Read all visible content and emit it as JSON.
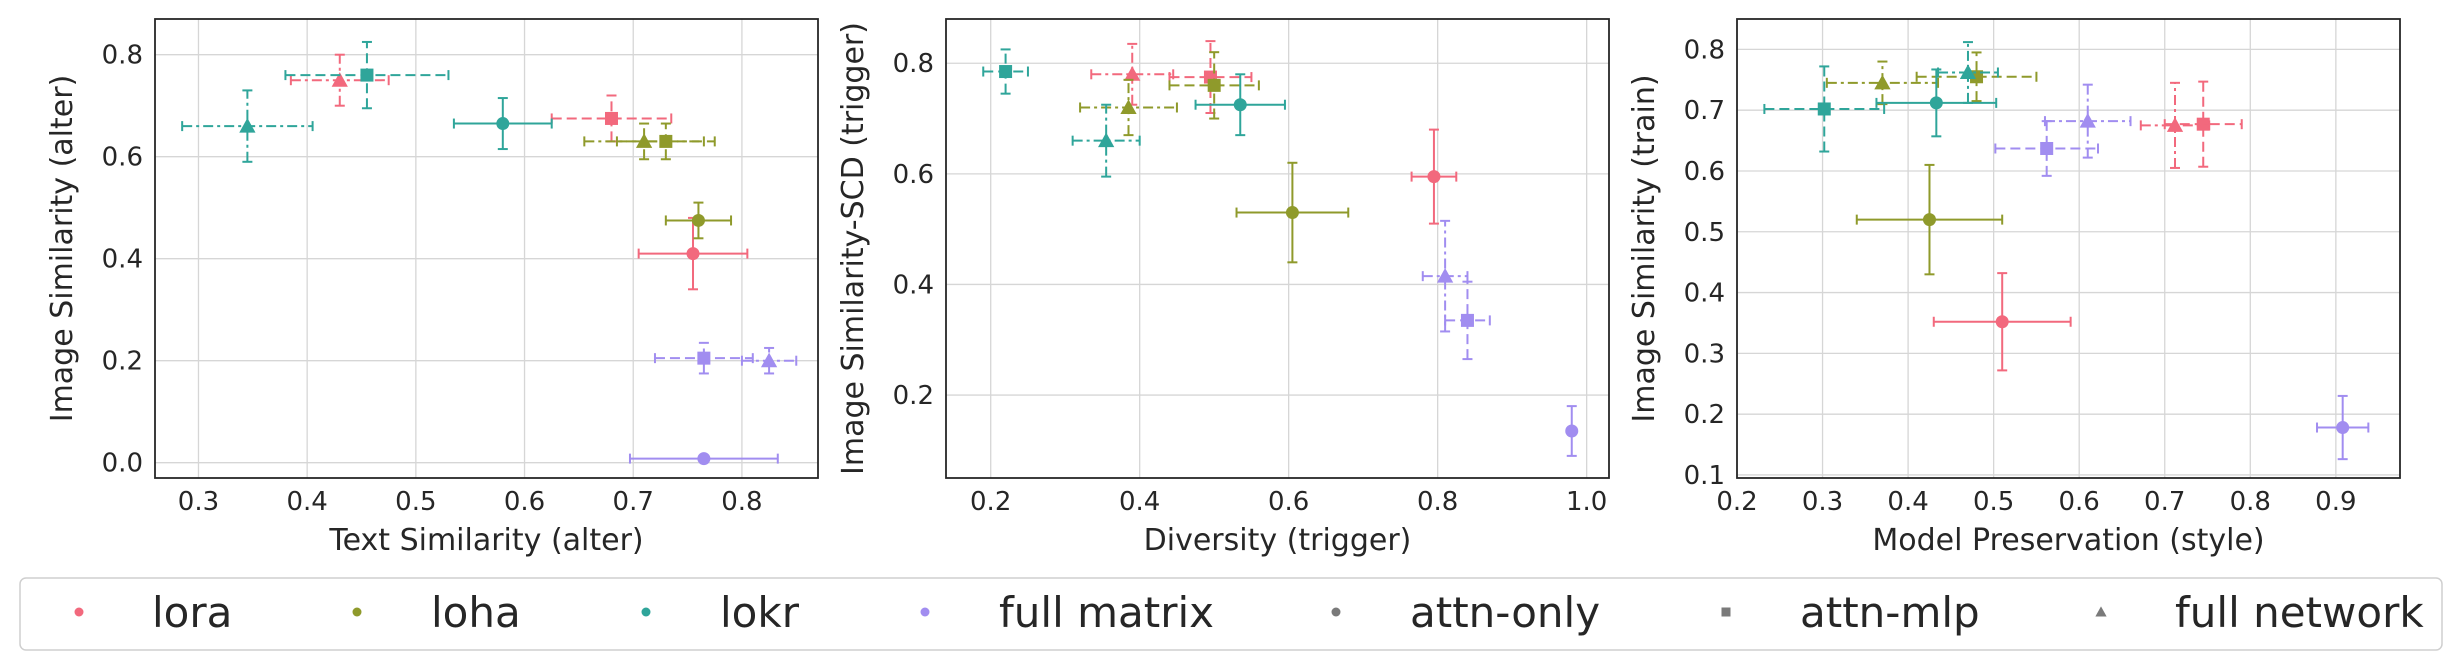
{
  "legend": {
    "items": [
      {
        "label": "lora",
        "kind": "color",
        "color": "#f2697d"
      },
      {
        "label": "loha",
        "kind": "color",
        "color": "#8f9a2b"
      },
      {
        "label": "lokr",
        "kind": "color",
        "color": "#2fa59a"
      },
      {
        "label": "full matrix",
        "kind": "color",
        "color": "#a18df0"
      },
      {
        "label": "attn-only",
        "kind": "marker",
        "marker": "circle"
      },
      {
        "label": "attn-mlp",
        "kind": "marker",
        "marker": "square"
      },
      {
        "label": "full network",
        "kind": "marker",
        "marker": "triangle"
      }
    ]
  },
  "chart_data": [
    {
      "type": "scatter",
      "xlabel": "Text Similarity (alter)",
      "ylabel": "Image Similarity (alter)",
      "xlim": [
        0.26,
        0.87
      ],
      "ylim": [
        -0.03,
        0.87
      ],
      "xticks": [
        "0.3",
        "0.4",
        "0.5",
        "0.6",
        "0.7",
        "0.8"
      ],
      "yticks": [
        "0.0",
        "0.2",
        "0.4",
        "0.6",
        "0.8"
      ],
      "grid": true,
      "points": [
        {
          "algo": "lora",
          "config": "attn-only",
          "x": 0.755,
          "xerr": 0.05,
          "y": 0.41,
          "yerr": 0.07
        },
        {
          "algo": "lora",
          "config": "attn-mlp",
          "x": 0.68,
          "xerr": 0.055,
          "y": 0.675,
          "yerr": 0.045
        },
        {
          "algo": "lora",
          "config": "full network",
          "x": 0.43,
          "xerr": 0.045,
          "y": 0.75,
          "yerr": 0.05
        },
        {
          "algo": "loha",
          "config": "attn-only",
          "x": 0.76,
          "xerr": 0.03,
          "y": 0.475,
          "yerr": 0.035
        },
        {
          "algo": "loha",
          "config": "attn-mlp",
          "x": 0.73,
          "xerr": 0.045,
          "y": 0.63,
          "yerr": 0.035
        },
        {
          "algo": "loha",
          "config": "full network",
          "x": 0.71,
          "xerr": 0.055,
          "y": 0.63,
          "yerr": 0.035
        },
        {
          "algo": "lokr",
          "config": "attn-only",
          "x": 0.58,
          "xerr": 0.045,
          "y": 0.665,
          "yerr": 0.05
        },
        {
          "algo": "lokr",
          "config": "attn-mlp",
          "x": 0.455,
          "xerr": 0.075,
          "y": 0.76,
          "yerr": 0.065
        },
        {
          "algo": "lokr",
          "config": "full network",
          "x": 0.345,
          "xerr": 0.06,
          "y": 0.66,
          "yerr": 0.07
        },
        {
          "algo": "full matrix",
          "config": "attn-only",
          "x": 0.765,
          "xerr": 0.068,
          "y": 0.008,
          "yerr": 0.0
        },
        {
          "algo": "full matrix",
          "config": "attn-mlp",
          "x": 0.765,
          "xerr": 0.045,
          "y": 0.205,
          "yerr": 0.03
        },
        {
          "algo": "full matrix",
          "config": "full network",
          "x": 0.825,
          "xerr": 0.025,
          "y": 0.2,
          "yerr": 0.025
        }
      ]
    },
    {
      "type": "scatter",
      "xlabel": "Diversity (trigger)",
      "ylabel": "Image Similarity-SCD (trigger)",
      "xlim": [
        0.14,
        1.03
      ],
      "ylim": [
        0.05,
        0.88
      ],
      "xticks": [
        "0.2",
        "0.4",
        "0.6",
        "0.8",
        "1.0"
      ],
      "yticks": [
        "0.2",
        "0.4",
        "0.6",
        "0.8"
      ],
      "grid": true,
      "points": [
        {
          "algo": "lora",
          "config": "attn-only",
          "x": 0.795,
          "xerr": 0.03,
          "y": 0.595,
          "yerr": 0.085
        },
        {
          "algo": "lora",
          "config": "attn-mlp",
          "x": 0.495,
          "xerr": 0.055,
          "y": 0.775,
          "yerr": 0.065
        },
        {
          "algo": "lora",
          "config": "full network",
          "x": 0.39,
          "xerr": 0.055,
          "y": 0.78,
          "yerr": 0.055
        },
        {
          "algo": "loha",
          "config": "attn-only",
          "x": 0.605,
          "xerr": 0.075,
          "y": 0.53,
          "yerr": 0.09
        },
        {
          "algo": "loha",
          "config": "attn-mlp",
          "x": 0.5,
          "xerr": 0.06,
          "y": 0.76,
          "yerr": 0.06
        },
        {
          "algo": "loha",
          "config": "full network",
          "x": 0.385,
          "xerr": 0.065,
          "y": 0.72,
          "yerr": 0.05
        },
        {
          "algo": "lokr",
          "config": "attn-only",
          "x": 0.535,
          "xerr": 0.06,
          "y": 0.725,
          "yerr": 0.055
        },
        {
          "algo": "lokr",
          "config": "attn-mlp",
          "x": 0.22,
          "xerr": 0.03,
          "y": 0.785,
          "yerr": 0.04
        },
        {
          "algo": "lokr",
          "config": "full network",
          "x": 0.355,
          "xerr": 0.045,
          "y": 0.66,
          "yerr": 0.065
        },
        {
          "algo": "full matrix",
          "config": "attn-only",
          "x": 0.98,
          "xerr": 0.0,
          "y": 0.135,
          "yerr": 0.045
        },
        {
          "algo": "full matrix",
          "config": "attn-mlp",
          "x": 0.84,
          "xerr": 0.03,
          "y": 0.335,
          "yerr": 0.07
        },
        {
          "algo": "full matrix",
          "config": "full network",
          "x": 0.81,
          "xerr": 0.03,
          "y": 0.415,
          "yerr": 0.1
        }
      ]
    },
    {
      "type": "scatter",
      "xlabel": "Model Preservation (style)",
      "ylabel": "Image Similarity (train)",
      "xlim": [
        0.2,
        0.975
      ],
      "ylim": [
        0.095,
        0.85
      ],
      "xticks": [
        "0.2",
        "0.3",
        "0.4",
        "0.5",
        "0.6",
        "0.7",
        "0.8",
        "0.9"
      ],
      "yticks": [
        "0.1",
        "0.2",
        "0.3",
        "0.4",
        "0.5",
        "0.6",
        "0.7",
        "0.8"
      ],
      "grid": true,
      "points": [
        {
          "algo": "lora",
          "config": "attn-only",
          "x": 0.51,
          "xerr": 0.08,
          "y": 0.352,
          "yerr": 0.08
        },
        {
          "algo": "lora",
          "config": "attn-mlp",
          "x": 0.745,
          "xerr": 0.045,
          "y": 0.677,
          "yerr": 0.07
        },
        {
          "algo": "lora",
          "config": "full network",
          "x": 0.712,
          "xerr": 0.04,
          "y": 0.675,
          "yerr": 0.07
        },
        {
          "algo": "loha",
          "config": "attn-only",
          "x": 0.425,
          "xerr": 0.085,
          "y": 0.52,
          "yerr": 0.09
        },
        {
          "algo": "loha",
          "config": "attn-mlp",
          "x": 0.48,
          "xerr": 0.07,
          "y": 0.755,
          "yerr": 0.04
        },
        {
          "algo": "loha",
          "config": "full network",
          "x": 0.37,
          "xerr": 0.065,
          "y": 0.745,
          "yerr": 0.035
        },
        {
          "algo": "lokr",
          "config": "attn-only",
          "x": 0.433,
          "xerr": 0.07,
          "y": 0.712,
          "yerr": 0.055
        },
        {
          "algo": "lokr",
          "config": "attn-mlp",
          "x": 0.302,
          "xerr": 0.07,
          "y": 0.702,
          "yerr": 0.07
        },
        {
          "algo": "lokr",
          "config": "full network",
          "x": 0.47,
          "xerr": 0.035,
          "y": 0.762,
          "yerr": 0.05
        },
        {
          "algo": "full matrix",
          "config": "attn-only",
          "x": 0.908,
          "xerr": 0.03,
          "y": 0.178,
          "yerr": 0.052
        },
        {
          "algo": "full matrix",
          "config": "attn-mlp",
          "x": 0.562,
          "xerr": 0.06,
          "y": 0.637,
          "yerr": 0.045
        },
        {
          "algo": "full matrix",
          "config": "full network",
          "x": 0.61,
          "xerr": 0.05,
          "y": 0.682,
          "yerr": 0.06
        }
      ]
    }
  ]
}
